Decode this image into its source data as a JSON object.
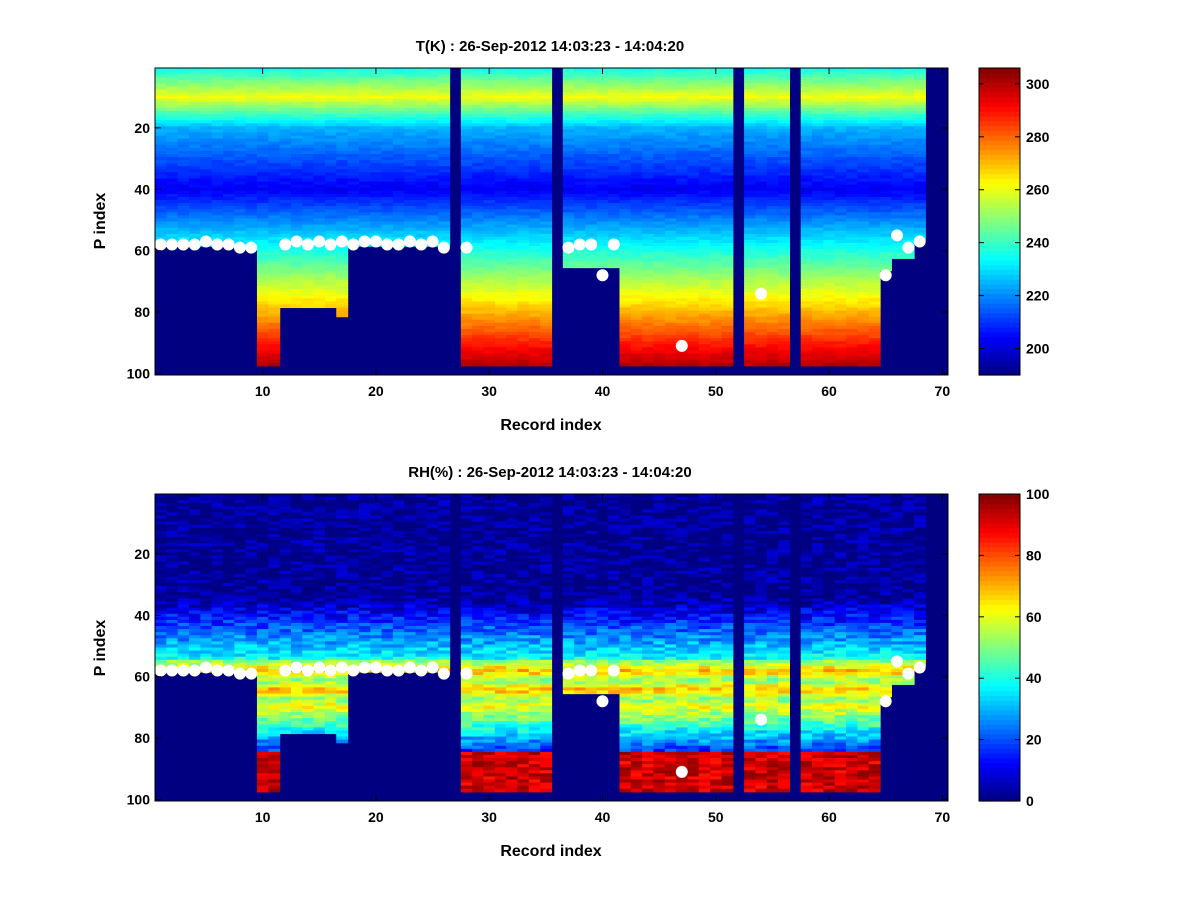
{
  "chart_data": [
    {
      "type": "heatmap",
      "title": "T(K) : 26-Sep-2012 14:03:23 - 14:04:20",
      "xlabel": "Record index",
      "ylabel": "P index",
      "xlim": [
        0.5,
        70.5
      ],
      "ylim": [
        0.5,
        100.5
      ],
      "xticks": [
        10,
        20,
        30,
        40,
        50,
        60,
        70
      ],
      "yticks": [
        20,
        40,
        60,
        80,
        100
      ],
      "colorbar": {
        "range": [
          190,
          306
        ],
        "ticks": [
          200,
          220,
          240,
          260,
          280,
          300
        ]
      },
      "colormap": "jet",
      "variable": "temperature",
      "missing_columns": [
        27,
        36,
        52,
        57,
        69,
        70
      ],
      "profile_bottoms": [
        58,
        58,
        58,
        58,
        58,
        58,
        58,
        58,
        58,
        97,
        97,
        78,
        78,
        78,
        78,
        78,
        81,
        57,
        58,
        58,
        58,
        58,
        58,
        58,
        58,
        58,
        0,
        97,
        97,
        97,
        97,
        97,
        97,
        97,
        97,
        0,
        65,
        65,
        65,
        65,
        65,
        97,
        97,
        97,
        97,
        97,
        97,
        97,
        97,
        97,
        97,
        0,
        97,
        97,
        97,
        97,
        0,
        97,
        97,
        97,
        97,
        97,
        97,
        97,
        66,
        62,
        62,
        56,
        0,
        0
      ],
      "surface_markers": [
        {
          "x": 1,
          "y": 58
        },
        {
          "x": 2,
          "y": 58
        },
        {
          "x": 3,
          "y": 58
        },
        {
          "x": 4,
          "y": 58
        },
        {
          "x": 5,
          "y": 57
        },
        {
          "x": 6,
          "y": 58
        },
        {
          "x": 7,
          "y": 58
        },
        {
          "x": 8,
          "y": 59
        },
        {
          "x": 9,
          "y": 59
        },
        {
          "x": 12,
          "y": 58
        },
        {
          "x": 13,
          "y": 57
        },
        {
          "x": 14,
          "y": 58
        },
        {
          "x": 15,
          "y": 57
        },
        {
          "x": 16,
          "y": 58
        },
        {
          "x": 17,
          "y": 57
        },
        {
          "x": 18,
          "y": 58
        },
        {
          "x": 19,
          "y": 57
        },
        {
          "x": 20,
          "y": 57
        },
        {
          "x": 21,
          "y": 58
        },
        {
          "x": 22,
          "y": 58
        },
        {
          "x": 23,
          "y": 57
        },
        {
          "x": 24,
          "y": 58
        },
        {
          "x": 25,
          "y": 57
        },
        {
          "x": 26,
          "y": 59
        },
        {
          "x": 28,
          "y": 59
        },
        {
          "x": 37,
          "y": 59
        },
        {
          "x": 38,
          "y": 58
        },
        {
          "x": 39,
          "y": 58
        },
        {
          "x": 40,
          "y": 68
        },
        {
          "x": 41,
          "y": 58
        },
        {
          "x": 47,
          "y": 91
        },
        {
          "x": 54,
          "y": 74
        },
        {
          "x": 65,
          "y": 68
        },
        {
          "x": 66,
          "y": 55
        },
        {
          "x": 67,
          "y": 59
        },
        {
          "x": 68,
          "y": 57
        }
      ]
    },
    {
      "type": "heatmap",
      "title": "RH(%) : 26-Sep-2012 14:03:23 - 14:04:20",
      "xlabel": "Record index",
      "ylabel": "P index",
      "xlim": [
        0.5,
        70.5
      ],
      "ylim": [
        0.5,
        100.5
      ],
      "xticks": [
        10,
        20,
        30,
        40,
        50,
        60,
        70
      ],
      "yticks": [
        20,
        40,
        60,
        80,
        100
      ],
      "colorbar": {
        "range": [
          0,
          100
        ],
        "ticks": [
          0,
          20,
          40,
          60,
          80,
          100
        ]
      },
      "colormap": "jet",
      "variable": "humidity",
      "missing_columns": [
        27,
        36,
        52,
        57,
        69,
        70
      ],
      "profile_bottoms": [
        58,
        58,
        58,
        58,
        58,
        58,
        58,
        58,
        58,
        97,
        97,
        78,
        78,
        78,
        78,
        78,
        81,
        57,
        58,
        58,
        58,
        58,
        58,
        58,
        58,
        58,
        0,
        97,
        97,
        97,
        97,
        97,
        97,
        97,
        97,
        0,
        65,
        65,
        65,
        65,
        65,
        97,
        97,
        97,
        97,
        97,
        97,
        97,
        97,
        97,
        97,
        0,
        97,
        97,
        97,
        97,
        0,
        97,
        97,
        97,
        97,
        97,
        97,
        97,
        66,
        62,
        62,
        56,
        0,
        0
      ],
      "surface_markers": [
        {
          "x": 1,
          "y": 58
        },
        {
          "x": 2,
          "y": 58
        },
        {
          "x": 3,
          "y": 58
        },
        {
          "x": 4,
          "y": 58
        },
        {
          "x": 5,
          "y": 57
        },
        {
          "x": 6,
          "y": 58
        },
        {
          "x": 7,
          "y": 58
        },
        {
          "x": 8,
          "y": 59
        },
        {
          "x": 9,
          "y": 59
        },
        {
          "x": 12,
          "y": 58
        },
        {
          "x": 13,
          "y": 57
        },
        {
          "x": 14,
          "y": 58
        },
        {
          "x": 15,
          "y": 57
        },
        {
          "x": 16,
          "y": 58
        },
        {
          "x": 17,
          "y": 57
        },
        {
          "x": 18,
          "y": 58
        },
        {
          "x": 19,
          "y": 57
        },
        {
          "x": 20,
          "y": 57
        },
        {
          "x": 21,
          "y": 58
        },
        {
          "x": 22,
          "y": 58
        },
        {
          "x": 23,
          "y": 57
        },
        {
          "x": 24,
          "y": 58
        },
        {
          "x": 25,
          "y": 57
        },
        {
          "x": 26,
          "y": 59
        },
        {
          "x": 28,
          "y": 59
        },
        {
          "x": 37,
          "y": 59
        },
        {
          "x": 38,
          "y": 58
        },
        {
          "x": 39,
          "y": 58
        },
        {
          "x": 40,
          "y": 68
        },
        {
          "x": 41,
          "y": 58
        },
        {
          "x": 47,
          "y": 91
        },
        {
          "x": 54,
          "y": 74
        },
        {
          "x": 65,
          "y": 68
        },
        {
          "x": 66,
          "y": 55
        },
        {
          "x": 67,
          "y": 59
        },
        {
          "x": 68,
          "y": 57
        }
      ]
    }
  ]
}
